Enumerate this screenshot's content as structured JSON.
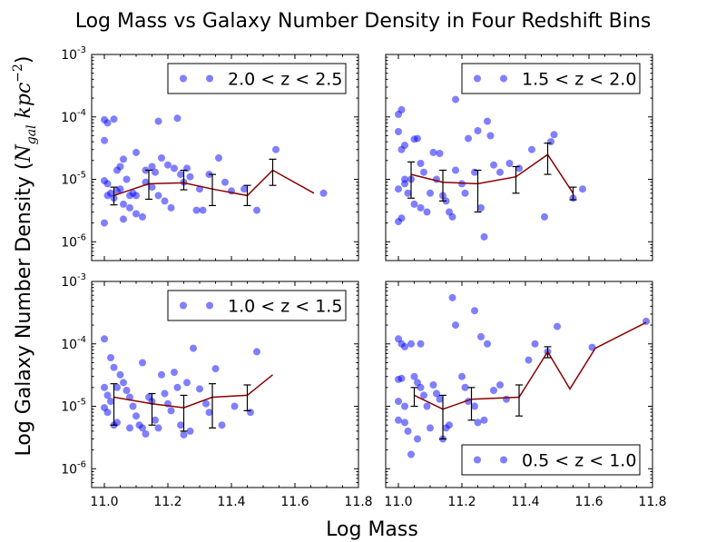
{
  "figure": {
    "title": "Log Mass vs Galaxy Number Density in Four Redshift Bins",
    "xlabel": "Log Mass",
    "ylabel_main": "Log Galaxy Number Density (",
    "ylabel_math_N": "N",
    "ylabel_math_sub": "gal",
    "ylabel_math_kpc": " kpc",
    "ylabel_math_exp": "−2",
    "ylabel_close": ")"
  },
  "chart_data": [
    {
      "type": "scatter",
      "panel": "top-left",
      "legend_placement": "top-right",
      "series": [
        {
          "name": "2.0 < z < 2.5",
          "color": "#0000ff",
          "points": [
            [
              11.0,
              9e-05
            ],
            [
              11.01,
              8e-05
            ],
            [
              11.03,
              9.2e-05
            ],
            [
              11.0,
              4.2e-05
            ],
            [
              11.0,
              2e-06
            ],
            [
              11.0,
              9.5e-06
            ],
            [
              11.01,
              8.5e-06
            ],
            [
              11.02,
              6e-06
            ],
            [
              11.01,
              5.5e-06
            ],
            [
              11.03,
              5e-06
            ],
            [
              11.04,
              6.5e-06
            ],
            [
              11.05,
              7e-06
            ],
            [
              11.04,
              1.4e-05
            ],
            [
              11.05,
              1.6e-05
            ],
            [
              11.06,
              2.1e-05
            ],
            [
              11.07,
              1e-05
            ],
            [
              11.08,
              5.5e-06
            ],
            [
              11.09,
              6e-06
            ],
            [
              11.1,
              5.5e-06
            ],
            [
              11.06,
              4e-06
            ],
            [
              11.08,
              3.5e-06
            ],
            [
              11.06,
              2.3e-06
            ],
            [
              11.1,
              2.8e-06
            ],
            [
              11.12,
              2.5e-06
            ],
            [
              11.1,
              2.7e-05
            ],
            [
              11.13,
              1.4e-05
            ],
            [
              11.15,
              1.6e-05
            ],
            [
              11.16,
              1.3e-05
            ],
            [
              11.18,
              2.2e-05
            ],
            [
              11.2,
              1.7e-05
            ],
            [
              11.22,
              1.5e-05
            ],
            [
              11.17,
              8.5e-05
            ],
            [
              11.13,
              9e-06
            ],
            [
              11.15,
              7.5e-06
            ],
            [
              11.17,
              5.5e-06
            ],
            [
              11.19,
              4.5e-06
            ],
            [
              11.21,
              3.5e-06
            ],
            [
              11.23,
              9.5e-05
            ],
            [
              11.24,
              1.2e-05
            ],
            [
              11.26,
              1.5e-05
            ],
            [
              11.27,
              1.1e-05
            ],
            [
              11.29,
              3.2e-06
            ],
            [
              11.31,
              3.2e-06
            ],
            [
              11.33,
              1.2e-05
            ],
            [
              11.36,
              2.2e-05
            ],
            [
              11.38,
              9e-06
            ],
            [
              11.4,
              6.5e-06
            ],
            [
              11.48,
              3.2e-06
            ],
            [
              11.54,
              3e-05
            ],
            [
              11.25,
              9e-06
            ],
            [
              11.3,
              7e-06
            ],
            [
              11.44,
              7e-06
            ],
            [
              11.69,
              6e-06
            ]
          ]
        }
      ],
      "trend": {
        "color": "#8b0000",
        "x": [
          11.03,
          11.14,
          11.25,
          11.34,
          11.45,
          11.53,
          11.66
        ],
        "y": [
          5.5e-06,
          8.5e-06,
          8.8e-06,
          7e-06,
          5.5e-06,
          1.4e-05,
          6e-06
        ],
        "err_lo": [
          3.9e-06,
          4.8e-06,
          6.8e-06,
          3.8e-06,
          3.8e-06,
          8e-06,
          null
        ],
        "err_hi": [
          7.5e-06,
          1.4e-05,
          1.4e-05,
          1.2e-05,
          8e-06,
          2.1e-05,
          null
        ]
      },
      "xlim": [
        10.96,
        11.8
      ],
      "ylim": [
        5e-07,
        0.001
      ],
      "yscale": "log",
      "xtick_labels_visible": false,
      "ytick_labels_visible": true
    },
    {
      "type": "scatter",
      "panel": "top-right",
      "legend_placement": "top-right",
      "series": [
        {
          "name": "1.5 < z < 2.0",
          "color": "#0000ff",
          "points": [
            [
              11.0,
              0.00011
            ],
            [
              11.0,
              5.8e-05
            ],
            [
              11.01,
              3e-05
            ],
            [
              11.02,
              3.5e-05
            ],
            [
              11.01,
              0.00013
            ],
            [
              11.02,
              1e-05
            ],
            [
              11.0,
              2.1e-06
            ],
            [
              11.01,
              2.4e-06
            ],
            [
              11.0,
              7e-06
            ],
            [
              11.02,
              8.5e-06
            ],
            [
              11.03,
              6e-06
            ],
            [
              11.04,
              1e-05
            ],
            [
              11.05,
              4.4e-05
            ],
            [
              11.06,
              4.5e-05
            ],
            [
              11.07,
              1.8e-05
            ],
            [
              11.08,
              1.3e-05
            ],
            [
              11.05,
              4e-06
            ],
            [
              11.07,
              3.5e-06
            ],
            [
              11.09,
              3e-06
            ],
            [
              11.1,
              6e-06
            ],
            [
              11.11,
              2.7e-05
            ],
            [
              11.12,
              1e-05
            ],
            [
              11.14,
              5.5e-06
            ],
            [
              11.13,
              2.6e-05
            ],
            [
              11.15,
              4.5e-06
            ],
            [
              11.16,
              3e-06
            ],
            [
              11.17,
              2.5e-06
            ],
            [
              11.18,
              1.4e-05
            ],
            [
              11.2,
              8.5e-06
            ],
            [
              11.21,
              6e-06
            ],
            [
              11.18,
              0.00019
            ],
            [
              11.22,
              4.5e-05
            ],
            [
              11.24,
              1.3e-05
            ],
            [
              11.25,
              6e-05
            ],
            [
              11.26,
              3.5e-06
            ],
            [
              11.27,
              1.2e-06
            ],
            [
              11.28,
              8.5e-05
            ],
            [
              11.29,
              5e-05
            ],
            [
              11.3,
              1.7e-05
            ],
            [
              11.32,
              1.3e-05
            ],
            [
              11.35,
              1.8e-05
            ],
            [
              11.38,
              1.5e-05
            ],
            [
              11.42,
              3e-05
            ],
            [
              11.46,
              2.5e-06
            ],
            [
              11.48,
              4e-05
            ],
            [
              11.49,
              5.2e-05
            ],
            [
              11.55,
              5e-06
            ],
            [
              11.58,
              7e-06
            ]
          ]
        }
      ],
      "trend": {
        "color": "#8b0000",
        "x": [
          11.04,
          11.14,
          11.25,
          11.37,
          11.47,
          11.55
        ],
        "y": [
          1.2e-05,
          9e-06,
          8.5e-06,
          1.1e-05,
          2.5e-05,
          6e-06
        ],
        "err_lo": [
          5e-06,
          4.5e-06,
          3e-06,
          6e-06,
          1.2e-05,
          4.7e-06
        ],
        "err_hi": [
          1.9e-05,
          1.4e-05,
          1.4e-05,
          1.6e-05,
          3.8e-05,
          7.5e-06
        ]
      },
      "xlim": [
        10.96,
        11.8
      ],
      "ylim": [
        5e-07,
        0.001
      ],
      "yscale": "log",
      "xtick_labels_visible": false,
      "ytick_labels_visible": false
    },
    {
      "type": "scatter",
      "panel": "bottom-left",
      "legend_placement": "top-right",
      "series": [
        {
          "name": "1.0 < z < 1.5",
          "color": "#0000ff",
          "points": [
            [
              11.0,
              0.00012
            ],
            [
              11.02,
              6e-05
            ],
            [
              11.03,
              4.2e-05
            ],
            [
              11.0,
              2e-05
            ],
            [
              11.01,
              1.5e-05
            ],
            [
              11.02,
              1.2e-05
            ],
            [
              11.0,
              9.5e-06
            ],
            [
              11.01,
              8e-06
            ],
            [
              11.03,
              5e-06
            ],
            [
              11.04,
              5.5e-06
            ],
            [
              11.04,
              2e-05
            ],
            [
              11.05,
              3.2e-05
            ],
            [
              11.06,
              2.4e-05
            ],
            [
              11.07,
              1.8e-05
            ],
            [
              11.08,
              1.4e-05
            ],
            [
              11.09,
              1e-05
            ],
            [
              11.1,
              7e-06
            ],
            [
              11.08,
              4.5e-06
            ],
            [
              11.11,
              5e-06
            ],
            [
              11.12,
              4.5e-06
            ],
            [
              11.13,
              3.6e-06
            ],
            [
              11.12,
              5e-05
            ],
            [
              11.14,
              1.4e-05
            ],
            [
              11.15,
              1.2e-05
            ],
            [
              11.16,
              6e-06
            ],
            [
              11.17,
              4.5e-06
            ],
            [
              11.18,
              3.2e-05
            ],
            [
              11.19,
              1.6e-05
            ],
            [
              11.2,
              1.1e-05
            ],
            [
              11.21,
              8.5e-06
            ],
            [
              11.22,
              3.5e-05
            ],
            [
              11.23,
              2e-05
            ],
            [
              11.24,
              5e-06
            ],
            [
              11.25,
              3.5e-06
            ],
            [
              11.26,
              2.4e-05
            ],
            [
              11.27,
              4e-06
            ],
            [
              11.28,
              8.5e-05
            ],
            [
              11.3,
              1.9e-05
            ],
            [
              11.32,
              1.1e-05
            ],
            [
              11.33,
              8e-06
            ],
            [
              11.35,
              4e-05
            ],
            [
              11.37,
              5e-06
            ],
            [
              11.41,
              1e-05
            ],
            [
              11.46,
              8e-06
            ],
            [
              11.48,
              7.5e-05
            ]
          ]
        }
      ],
      "trend": {
        "color": "#8b0000",
        "x": [
          11.03,
          11.15,
          11.25,
          11.34,
          11.45,
          11.53
        ],
        "y": [
          1.4e-05,
          1.1e-05,
          9.5e-06,
          1.4e-05,
          1.5e-05,
          3.2e-05
        ],
        "err_lo": [
          5e-06,
          5e-06,
          4e-06,
          4.5e-06,
          8.5e-06,
          null
        ],
        "err_hi": [
          2.3e-05,
          1.6e-05,
          1.5e-05,
          2.3e-05,
          2.2e-05,
          null
        ]
      },
      "xlim": [
        10.96,
        11.8
      ],
      "ylim": [
        5e-07,
        0.001
      ],
      "yscale": "log",
      "xtick_labels_visible": true,
      "ytick_labels_visible": true
    },
    {
      "type": "scatter",
      "panel": "bottom-right",
      "legend_placement": "bottom-right",
      "series": [
        {
          "name": "0.5 < z < 1.0",
          "color": "#0000ff",
          "points": [
            [
              11.0,
              0.00012
            ],
            [
              11.01,
              0.0001
            ],
            [
              11.02,
              9e-05
            ],
            [
              11.04,
              0.0001
            ],
            [
              11.0,
              2.7e-05
            ],
            [
              11.01,
              2.8e-05
            ],
            [
              11.0,
              1.2e-05
            ],
            [
              11.02,
              1e-05
            ],
            [
              11.0,
              6e-06
            ],
            [
              11.02,
              5.5e-06
            ],
            [
              11.03,
              4e-06
            ],
            [
              11.04,
              1.7e-06
            ],
            [
              11.05,
              3e-05
            ],
            [
              11.06,
              2.4e-05
            ],
            [
              11.07,
              2e-05
            ],
            [
              11.07,
              0.0001
            ],
            [
              11.08,
              1.5e-05
            ],
            [
              11.09,
              1e-05
            ],
            [
              11.06,
              3e-06
            ],
            [
              11.1,
              4.5e-06
            ],
            [
              11.11,
              2.2e-05
            ],
            [
              11.12,
              1.6e-05
            ],
            [
              11.13,
              1.3e-05
            ],
            [
              11.14,
              3e-06
            ],
            [
              11.15,
              4.5e-06
            ],
            [
              11.16,
              5e-06
            ],
            [
              11.17,
              0.00055
            ],
            [
              11.18,
              0.0002
            ],
            [
              11.2,
              3e-05
            ],
            [
              11.21,
              2e-05
            ],
            [
              11.22,
              1.2e-05
            ],
            [
              11.24,
              1e-05
            ],
            [
              11.25,
              5.5e-06
            ],
            [
              11.27,
              6e-06
            ],
            [
              11.28,
              0.0001
            ],
            [
              11.3,
              1.8e-05
            ],
            [
              11.32,
              2.2e-05
            ],
            [
              11.34,
              1.3e-05
            ],
            [
              11.24,
              0.00034
            ],
            [
              11.26,
              0.00013
            ],
            [
              11.41,
              5.5e-05
            ],
            [
              11.43,
              0.0001
            ],
            [
              11.47,
              7.5e-05
            ],
            [
              11.5,
              0.00019
            ],
            [
              11.61,
              8.8e-05
            ],
            [
              11.78,
              0.00023
            ]
          ]
        }
      ],
      "trend": {
        "color": "#8b0000",
        "x": [
          11.05,
          11.14,
          11.23,
          11.38,
          11.47,
          11.54,
          11.62,
          11.78
        ],
        "y": [
          1.5e-05,
          9e-06,
          1.3e-05,
          1.4e-05,
          7.5e-05,
          1.9e-05,
          8.5e-05,
          0.00022
        ],
        "err_lo": [
          1e-05,
          3e-06,
          6e-06,
          7e-06,
          6e-05,
          null,
          null,
          null
        ],
        "err_hi": [
          2e-05,
          1.5e-05,
          2e-05,
          2.2e-05,
          9e-05,
          null,
          null,
          null
        ]
      },
      "xlim": [
        10.96,
        11.8
      ],
      "ylim": [
        5e-07,
        0.001
      ],
      "yscale": "log",
      "xtick_labels_visible": true,
      "ytick_labels_visible": false
    }
  ],
  "axes": {
    "xticks": [
      11.0,
      11.2,
      11.4,
      11.6,
      11.8
    ],
    "xtick_labels": [
      "11.0",
      "11.2",
      "11.4",
      "11.6",
      "11.8"
    ],
    "yticks_exp": [
      -6,
      -5,
      -4,
      -3
    ],
    "ytick_base": "10",
    "ytick_exponents": [
      "-6",
      "-5",
      "-4",
      "-3"
    ]
  }
}
